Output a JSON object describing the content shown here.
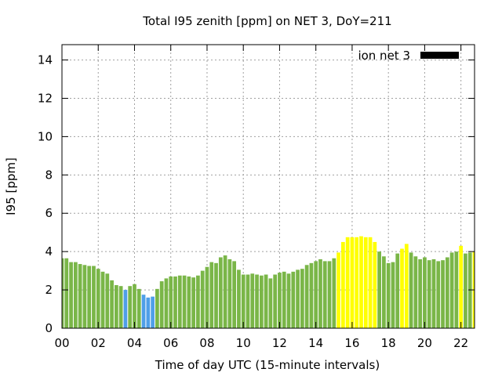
{
  "chart_data": {
    "type": "bar",
    "title": "Total I95 zenith [ppm] on NET 3, DoY=211",
    "xlabel": "Time of day UTC (15-minute intervals)",
    "ylabel": "I95 [ppm]",
    "ylim": [
      0,
      14.8
    ],
    "yticks": [
      "0",
      "2",
      "4",
      "6",
      "8",
      "10",
      "12",
      "14"
    ],
    "xticks": [
      "00",
      "02",
      "04",
      "06",
      "08",
      "10",
      "12",
      "14",
      "16",
      "18",
      "20",
      "22"
    ],
    "xlim_hours": [
      0,
      22.75
    ],
    "grid": true,
    "legend": {
      "label": "ion net 3",
      "color": "#000000",
      "position": "top-right"
    },
    "series": [
      {
        "x_hours": [
          0.0,
          0.25,
          0.5,
          0.75,
          1.0,
          1.25,
          1.5,
          1.75,
          2.0,
          2.25,
          2.5,
          2.75,
          3.0,
          3.25,
          3.5,
          3.75,
          4.0,
          4.25,
          4.5,
          4.75,
          5.0,
          5.25,
          5.5,
          5.75,
          6.0,
          6.25,
          6.5,
          6.75,
          7.0,
          7.25,
          7.5,
          7.75,
          8.0,
          8.25,
          8.5,
          8.75,
          9.0,
          9.25,
          9.5,
          9.75,
          10.0,
          10.25,
          10.5,
          10.75,
          11.0,
          11.25,
          11.5,
          11.75,
          12.0,
          12.25,
          12.5,
          12.75,
          13.0,
          13.25,
          13.5,
          13.75,
          14.0,
          14.25,
          14.5,
          14.75,
          15.0,
          15.25,
          15.5,
          15.75,
          16.0,
          16.25,
          16.5,
          16.75,
          17.0,
          17.25,
          17.5,
          17.75,
          18.0,
          18.25,
          18.5,
          18.75,
          19.0,
          19.25,
          19.5,
          19.75,
          20.0,
          20.25,
          20.5,
          20.75,
          21.0,
          21.25,
          21.5,
          21.75,
          22.0,
          22.25,
          22.5,
          22.75
        ],
        "values": [
          3.65,
          3.65,
          3.45,
          3.45,
          3.35,
          3.3,
          3.25,
          3.25,
          3.1,
          2.95,
          2.85,
          2.5,
          2.25,
          2.2,
          2.0,
          2.2,
          2.3,
          2.05,
          1.75,
          1.6,
          1.65,
          2.05,
          2.45,
          2.6,
          2.7,
          2.7,
          2.75,
          2.75,
          2.7,
          2.65,
          2.75,
          3.0,
          3.2,
          3.45,
          3.4,
          3.7,
          3.8,
          3.6,
          3.5,
          3.05,
          2.8,
          2.8,
          2.85,
          2.8,
          2.75,
          2.8,
          2.6,
          2.8,
          2.9,
          2.95,
          2.85,
          2.95,
          3.05,
          3.1,
          3.3,
          3.4,
          3.5,
          3.6,
          3.5,
          3.5,
          3.65,
          3.95,
          4.5,
          4.75,
          4.75,
          4.75,
          4.8,
          4.75,
          4.75,
          4.5,
          4.0,
          3.75,
          3.4,
          3.45,
          3.9,
          4.15,
          4.4,
          3.95,
          3.75,
          3.6,
          3.7,
          3.55,
          3.6,
          3.5,
          3.55,
          3.7,
          3.95,
          4.0,
          4.3,
          3.9,
          3.95,
          4.0
        ],
        "color_levels": [
          "g",
          "g",
          "g",
          "g",
          "g",
          "g",
          "g",
          "g",
          "g",
          "g",
          "g",
          "g",
          "g",
          "g",
          "b",
          "g",
          "g",
          "g",
          "b",
          "b",
          "b",
          "g",
          "g",
          "g",
          "g",
          "g",
          "g",
          "g",
          "g",
          "g",
          "g",
          "g",
          "g",
          "g",
          "g",
          "g",
          "g",
          "g",
          "g",
          "g",
          "g",
          "g",
          "g",
          "g",
          "g",
          "g",
          "g",
          "g",
          "g",
          "g",
          "g",
          "g",
          "g",
          "g",
          "g",
          "g",
          "g",
          "g",
          "g",
          "g",
          "g",
          "y",
          "y",
          "y",
          "y",
          "y",
          "y",
          "y",
          "y",
          "y",
          "g",
          "g",
          "g",
          "g",
          "g",
          "y",
          "y",
          "g",
          "g",
          "g",
          "g",
          "g",
          "g",
          "g",
          "g",
          "g",
          "g",
          "g",
          "y",
          "g",
          "g",
          "y"
        ]
      }
    ],
    "level_colors": {
      "g": "#7ab648",
      "b": "#4f9fe8",
      "y": "#ffff00"
    }
  }
}
